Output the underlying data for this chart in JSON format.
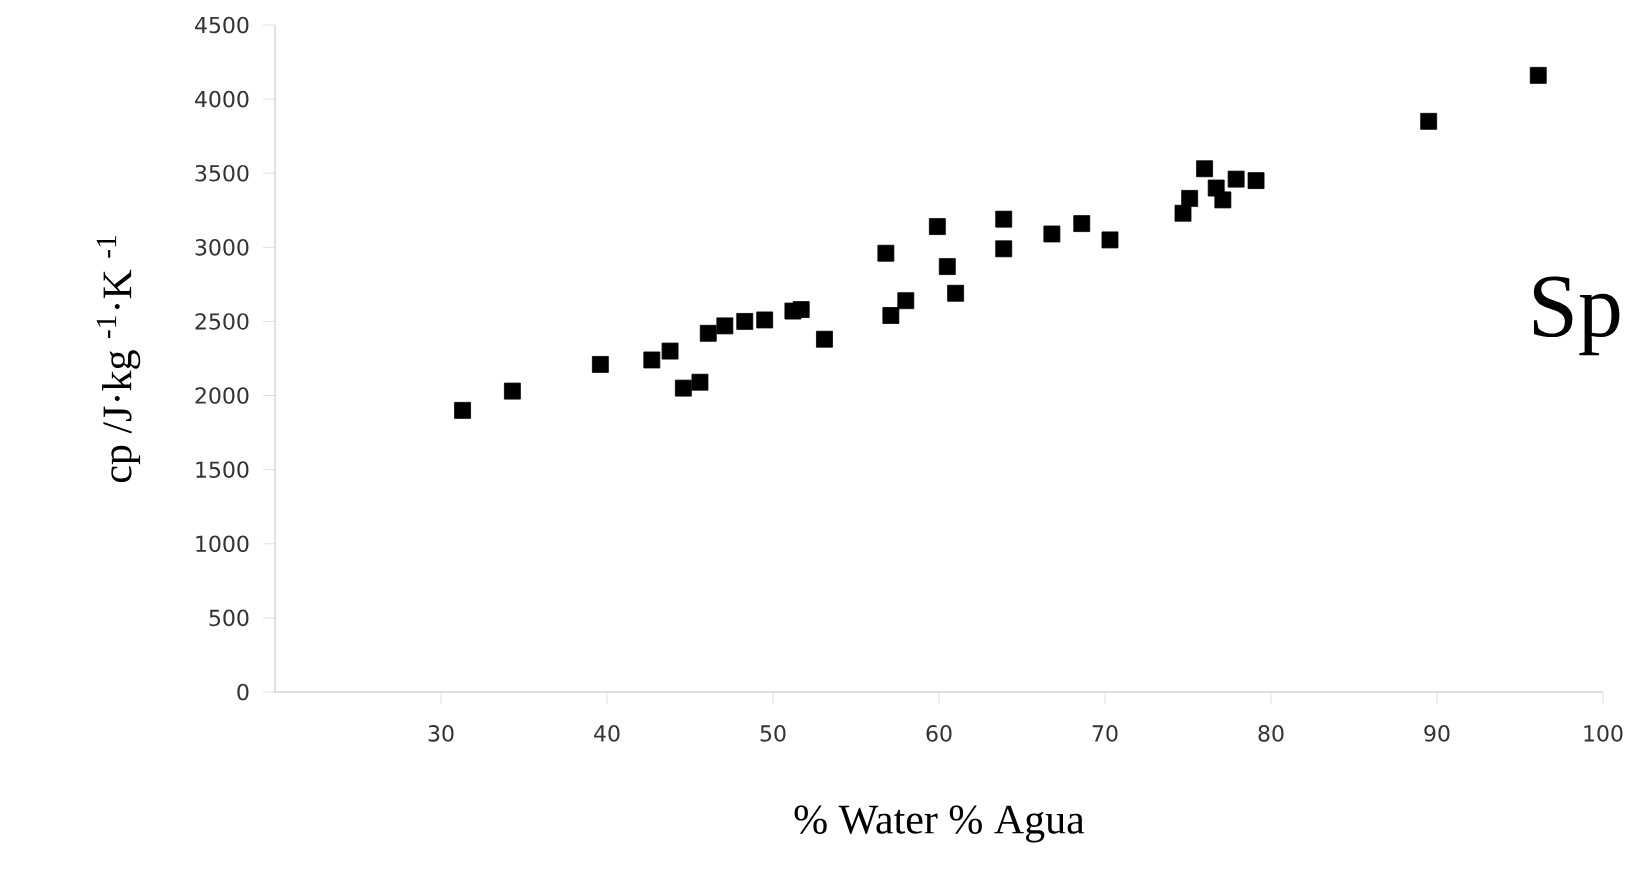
{
  "chart_data": {
    "type": "scatter",
    "xlabel": "% Water     % Agua",
    "ylabel": "cp /J·kg $^{-1}$·K $^{-1}$",
    "annotations": [
      "Sp"
    ],
    "x": [
      31.3,
      34.3,
      39.6,
      42.7,
      43.8,
      44.6,
      45.6,
      46.1,
      47.1,
      48.3,
      49.5,
      51.2,
      51.7,
      53.1,
      56.8,
      57.1,
      58.0,
      59.9,
      60.5,
      61.0,
      63.9,
      63.9,
      66.8,
      68.6,
      70.3,
      74.7,
      75.1,
      76.0,
      76.7,
      77.1,
      77.9,
      79.1,
      89.5,
      96.1
    ],
    "series": [
      {
        "color": "#000000",
        "values": [
          1900,
          2030,
          2210,
          2240,
          2300,
          2050,
          2090,
          2420,
          2470,
          2500,
          2510,
          2570,
          2580,
          2380,
          2960,
          2540,
          2640,
          3140,
          2870,
          2690,
          3190,
          2990,
          3090,
          3160,
          3050,
          3230,
          3330,
          3530,
          3400,
          3320,
          3460,
          3450,
          3850,
          4160
        ]
      }
    ],
    "xlim": [
      20,
      100
    ],
    "xticks": [
      30,
      40,
      50,
      60,
      70,
      80,
      90,
      100
    ],
    "ylim": [
      0,
      4500
    ],
    "yticks": [
      0,
      500,
      1000,
      1500,
      2000,
      2500,
      3000,
      3500,
      4000,
      4500
    ],
    "grid": false,
    "marker": "square"
  }
}
